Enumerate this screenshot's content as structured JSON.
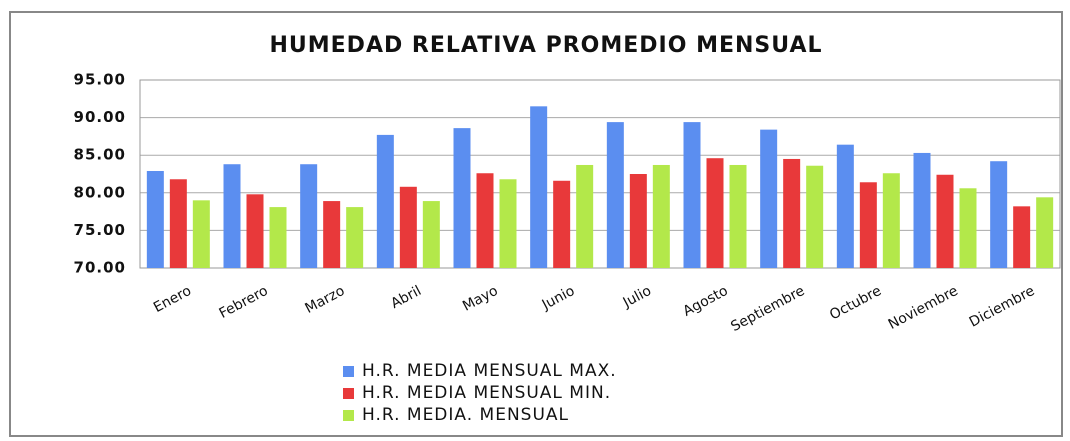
{
  "chart_data": {
    "type": "bar",
    "title": "HUMEDAD RELATIVA PROMEDIO MENSUAL",
    "categories": [
      "Enero",
      "Febrero",
      "Marzo",
      "Abril",
      "Mayo",
      "Junio",
      "Julio",
      "Agosto",
      "Septiembre",
      "Octubre",
      "Noviembre",
      "Diciembre"
    ],
    "series": [
      {
        "name": "H.R. MEDIA MENSUAL MAX.",
        "color": "#5b8ef0",
        "values": [
          82.9,
          83.8,
          83.8,
          87.7,
          88.6,
          91.5,
          89.4,
          89.4,
          88.4,
          86.4,
          85.3,
          84.2
        ]
      },
      {
        "name": "H.R. MEDIA MENSUAL MIN.",
        "color": "#e8393a",
        "values": [
          81.8,
          79.8,
          78.9,
          80.8,
          82.6,
          81.6,
          82.5,
          84.6,
          84.5,
          81.4,
          82.4,
          78.2
        ]
      },
      {
        "name": "H.R. MEDIA. MENSUAL",
        "color": "#b3e84a",
        "values": [
          79.0,
          78.1,
          78.1,
          78.9,
          81.8,
          83.7,
          83.7,
          83.7,
          83.6,
          82.6,
          80.6,
          79.4
        ]
      }
    ],
    "ylim": [
      70,
      95
    ],
    "yticks": [
      {
        "value": 70,
        "label": "70.00"
      },
      {
        "value": 75,
        "label": "75.00"
      },
      {
        "value": 80,
        "label": "80.00"
      },
      {
        "value": 85,
        "label": "85.00"
      },
      {
        "value": 90,
        "label": "90.00"
      },
      {
        "value": 95,
        "label": "95.00"
      }
    ],
    "grid": true,
    "legend": "bottom"
  }
}
